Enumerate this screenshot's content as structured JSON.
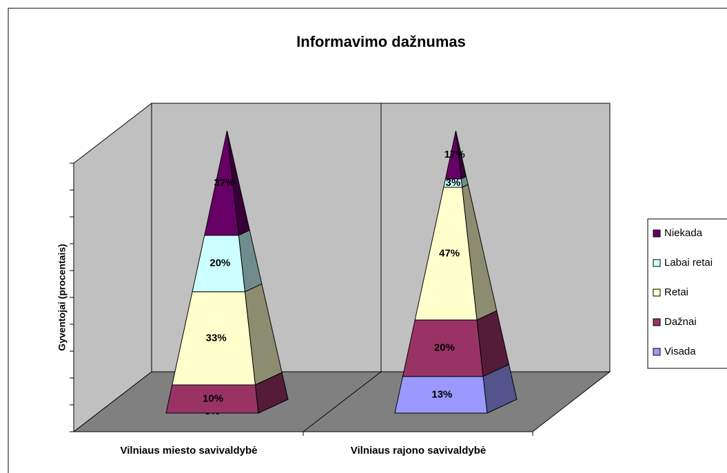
{
  "chart_data": {
    "type": "pyramid",
    "stacked": "percent",
    "title": "Informavimo dažnumas",
    "y_label": "Gyventojai (procentais)",
    "categories": [
      "Vilniaus miesto savivaldybė",
      "Vilniaus rajono savivaldybė"
    ],
    "series": [
      {
        "name": "Visada",
        "color": "#9999ff",
        "values": [
          0,
          13
        ],
        "value_labels": [
          "0%",
          "13%"
        ]
      },
      {
        "name": "Dažnai",
        "color": "#993366",
        "values": [
          10,
          20
        ],
        "value_labels": [
          "10%",
          "20%"
        ]
      },
      {
        "name": "Retai",
        "color": "#ffffcc",
        "values": [
          33,
          47
        ],
        "value_labels": [
          "33%",
          "47%"
        ]
      },
      {
        "name": "Labai retai",
        "color": "#ccffff",
        "values": [
          20,
          3
        ],
        "value_labels": [
          "20%",
          "3%"
        ]
      },
      {
        "name": "Niekada",
        "color": "#660066",
        "values": [
          37,
          17
        ],
        "value_labels": [
          "37%",
          "17%"
        ]
      }
    ],
    "ylim": [
      0,
      100
    ],
    "yticks": [
      0,
      10,
      20,
      30,
      40,
      50,
      60,
      70,
      80,
      90,
      100
    ],
    "legend": "right"
  }
}
